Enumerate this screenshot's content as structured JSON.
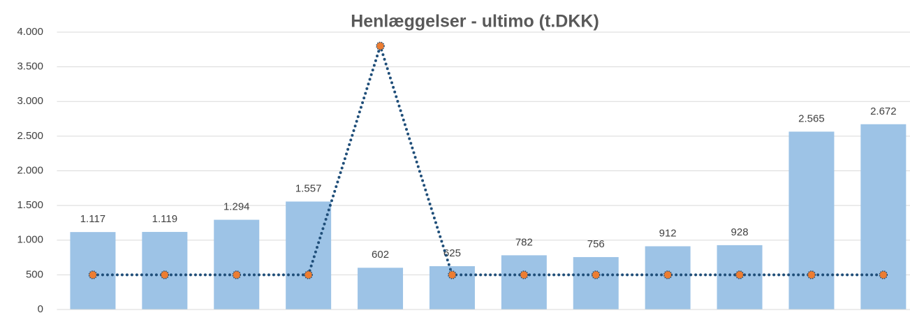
{
  "chart_data": {
    "type": "bar",
    "title": "Henlæggelser - ultimo (t.DKK)",
    "categories": [
      null,
      null,
      null,
      null,
      null,
      null,
      null,
      null,
      null,
      null,
      null,
      null
    ],
    "series": [
      {
        "type": "bar",
        "color": "#9dc3e6",
        "values": [
          1117,
          1119,
          1294,
          1557,
          602,
          625,
          782,
          756,
          912,
          928,
          2565,
          2672
        ],
        "value_labels": [
          "1.117",
          "1.119",
          "1.294",
          "1.557",
          "602",
          "625",
          "782",
          "756",
          "912",
          "928",
          "2.565",
          "2.672"
        ]
      },
      {
        "type": "line",
        "color": "#1f4e79",
        "marker_color": "#ed7d31",
        "values": [
          500,
          500,
          500,
          500,
          3800,
          500,
          500,
          500,
          500,
          500,
          500,
          500
        ]
      }
    ],
    "ylim": [
      0,
      4000
    ],
    "yticks": [
      0,
      500,
      {
        "value": 1000,
        "label": "1.000"
      },
      {
        "value": 1500,
        "label": "1.500"
      },
      {
        "value": 2000,
        "label": "2.000"
      },
      {
        "value": 2500,
        "label": "2.500"
      },
      {
        "value": 3000,
        "label": "3.000"
      },
      {
        "value": 3500,
        "label": "3.500"
      },
      {
        "value": 4000,
        "label": "4.000"
      }
    ],
    "grid": true
  }
}
